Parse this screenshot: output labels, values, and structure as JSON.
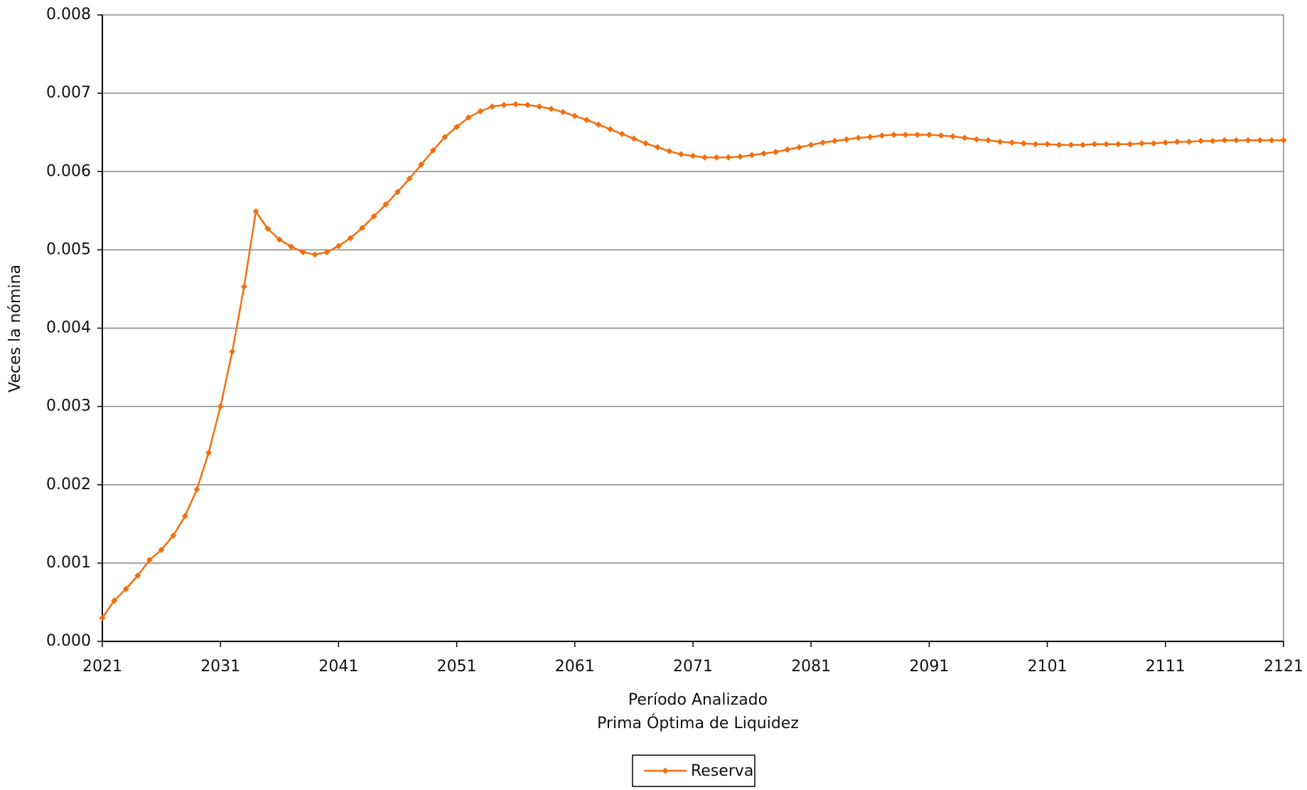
{
  "chart_data": {
    "type": "line",
    "subtitle": "Prima Óptima de Liquidez",
    "x_label": "Período Analizado",
    "y_label": "Veces la nómina",
    "x": [
      2021,
      2022,
      2023,
      2024,
      2025,
      2026,
      2027,
      2028,
      2029,
      2030,
      2031,
      2032,
      2033,
      2034,
      2035,
      2036,
      2037,
      2038,
      2039,
      2040,
      2041,
      2042,
      2043,
      2044,
      2045,
      2046,
      2047,
      2048,
      2049,
      2050,
      2051,
      2052,
      2053,
      2054,
      2055,
      2056,
      2057,
      2058,
      2059,
      2060,
      2061,
      2062,
      2063,
      2064,
      2065,
      2066,
      2067,
      2068,
      2069,
      2070,
      2071,
      2072,
      2073,
      2074,
      2075,
      2076,
      2077,
      2078,
      2079,
      2080,
      2081,
      2082,
      2083,
      2084,
      2085,
      2086,
      2087,
      2088,
      2089,
      2090,
      2091,
      2092,
      2093,
      2094,
      2095,
      2096,
      2097,
      2098,
      2099,
      2100,
      2101,
      2102,
      2103,
      2104,
      2105,
      2106,
      2107,
      2108,
      2109,
      2110,
      2111,
      2112,
      2113,
      2114,
      2115,
      2116,
      2117,
      2118,
      2119,
      2120,
      2121
    ],
    "series": [
      {
        "name": "Reserva",
        "color": "#f26f0f",
        "values": [
          0.0003,
          0.00052,
          0.00067,
          0.00084,
          0.00104,
          0.00117,
          0.00135,
          0.0016,
          0.00194,
          0.00241,
          0.003,
          0.0037,
          0.00453,
          0.00549,
          0.00527,
          0.00513,
          0.00504,
          0.00497,
          0.00494,
          0.00497,
          0.00505,
          0.00515,
          0.00528,
          0.00543,
          0.00558,
          0.00574,
          0.00591,
          0.00609,
          0.00627,
          0.00644,
          0.00657,
          0.00669,
          0.00677,
          0.00683,
          0.00685,
          0.00686,
          0.00685,
          0.00683,
          0.0068,
          0.00676,
          0.00671,
          0.00666,
          0.0066,
          0.00654,
          0.00648,
          0.00642,
          0.00636,
          0.00631,
          0.00626,
          0.00622,
          0.0062,
          0.00618,
          0.00618,
          0.00618,
          0.00619,
          0.00621,
          0.00623,
          0.00625,
          0.00628,
          0.00631,
          0.00634,
          0.00637,
          0.00639,
          0.00641,
          0.00643,
          0.00644,
          0.00646,
          0.00647,
          0.00647,
          0.00647,
          0.00647,
          0.00646,
          0.00645,
          0.00643,
          0.00641,
          0.0064,
          0.00638,
          0.00637,
          0.00636,
          0.00635,
          0.00635,
          0.00634,
          0.00634,
          0.00634,
          0.00635,
          0.00635,
          0.00635,
          0.00635,
          0.00636,
          0.00636,
          0.00637,
          0.00638,
          0.00638,
          0.00639,
          0.00639,
          0.0064,
          0.0064,
          0.0064,
          0.0064,
          0.0064,
          0.0064
        ]
      }
    ],
    "xlim": [
      2021,
      2121
    ],
    "xticks": [
      2021,
      2031,
      2041,
      2051,
      2061,
      2071,
      2081,
      2091,
      2101,
      2111,
      2121
    ],
    "ylim": [
      0,
      0.008
    ],
    "yticks": [
      {
        "value": 0,
        "label": "0.000"
      },
      {
        "value": 0.001,
        "label": "0.001"
      },
      {
        "value": 0.002,
        "label": "0.002"
      },
      {
        "value": 0.003,
        "label": "0.003"
      },
      {
        "value": 0.004,
        "label": "0.004"
      },
      {
        "value": 0.005,
        "label": "0.005"
      },
      {
        "value": 0.006,
        "label": "0.006"
      },
      {
        "value": 0.007,
        "label": "0.007"
      },
      {
        "value": 0.008,
        "label": "0.008"
      }
    ],
    "grid": true,
    "legend": "bottom"
  }
}
